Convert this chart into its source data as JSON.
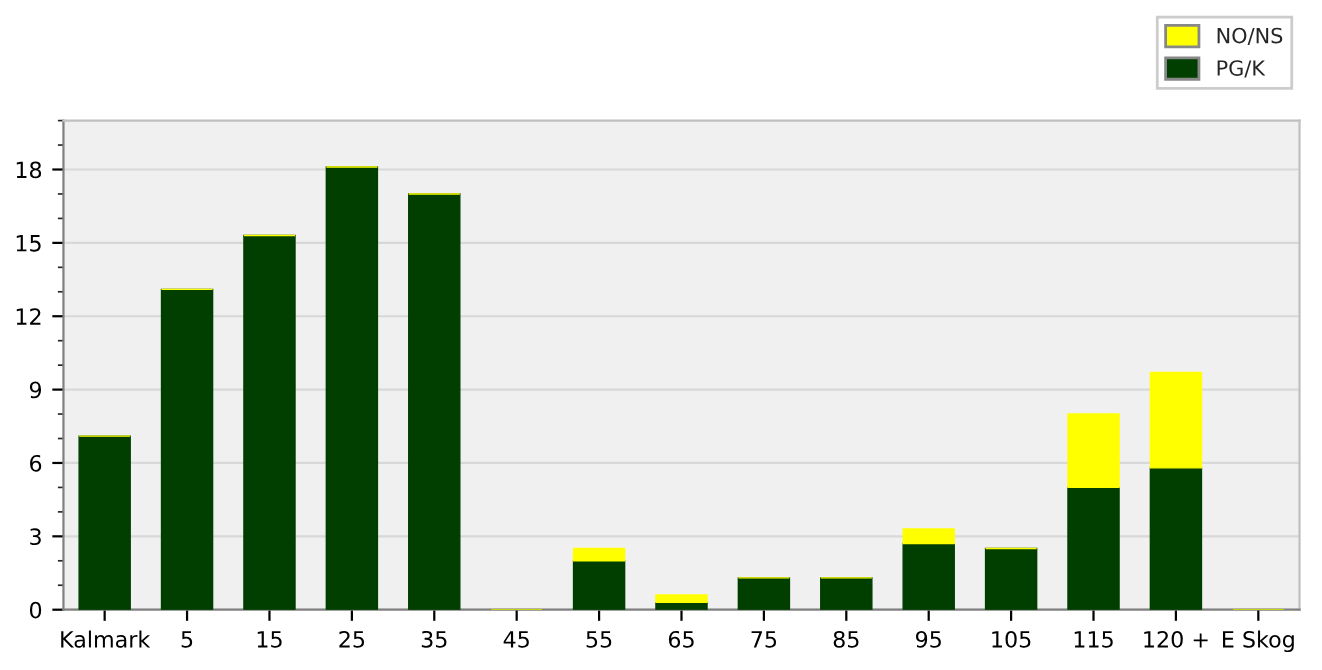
{
  "chart_data": {
    "type": "bar",
    "stacked": true,
    "categories": [
      "Kalmark",
      "5",
      "15",
      "25",
      "35",
      "45",
      "55",
      "65",
      "75",
      "85",
      "95",
      "105",
      "115",
      "120 +",
      "E Skog"
    ],
    "series": [
      {
        "name": "PG/K",
        "color": "#003f00",
        "values": [
          7.1,
          13.1,
          15.3,
          18.1,
          17.0,
          0,
          2.0,
          0.3,
          1.3,
          1.3,
          2.7,
          2.5,
          5.0,
          5.8,
          0
        ]
      },
      {
        "name": "NO/NS",
        "color": "#ffff00",
        "values": [
          0,
          0,
          0,
          0,
          0,
          0,
          0.5,
          0.3,
          0,
          0,
          0.6,
          0,
          3.0,
          3.9,
          0
        ]
      }
    ],
    "ylim": [
      0,
      20
    ],
    "yticks": [
      0,
      3,
      6,
      9,
      12,
      15,
      18
    ],
    "grid": "y",
    "legend": "top right"
  }
}
